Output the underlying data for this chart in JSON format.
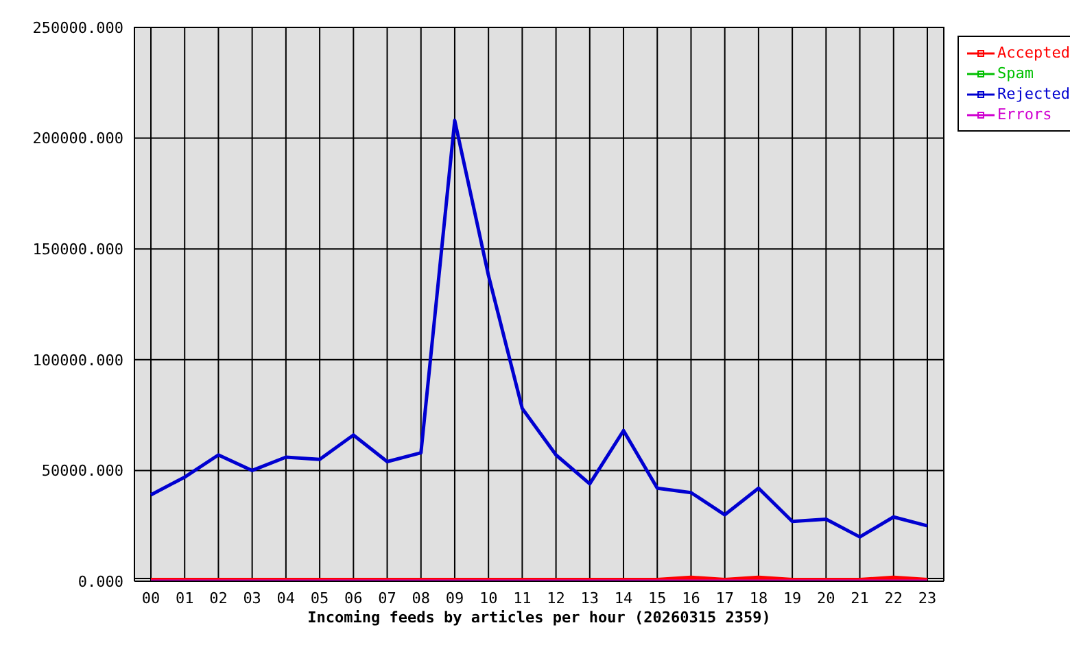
{
  "chart_data": {
    "type": "line",
    "xlabel": "Incoming feeds by articles per hour (20260315 2359)",
    "categories": [
      "00",
      "01",
      "02",
      "03",
      "04",
      "05",
      "06",
      "07",
      "08",
      "09",
      "10",
      "11",
      "12",
      "13",
      "14",
      "15",
      "16",
      "17",
      "18",
      "19",
      "20",
      "21",
      "22",
      "23"
    ],
    "series": [
      {
        "name": "Accepted",
        "color": "#ff0000",
        "values": [
          0,
          0,
          0,
          0,
          0,
          0,
          0,
          0,
          0,
          0,
          0,
          0,
          0,
          0,
          0,
          0,
          1000,
          0,
          1000,
          0,
          0,
          0,
          1000,
          0
        ]
      },
      {
        "name": "Spam",
        "color": "#00c000",
        "values": [
          null,
          null,
          null,
          null,
          null,
          null,
          null,
          null,
          null,
          null,
          null,
          null,
          null,
          null,
          null,
          null,
          null,
          null,
          null,
          null,
          null,
          null,
          null,
          null
        ]
      },
      {
        "name": "Rejected",
        "color": "#0000d0",
        "values": [
          39000,
          47000,
          57000,
          50000,
          56000,
          55000,
          66000,
          54000,
          58000,
          208000,
          138000,
          78000,
          57000,
          44000,
          68000,
          42000,
          40000,
          30000,
          42000,
          27000,
          28000,
          20000,
          29000,
          25000
        ]
      },
      {
        "name": "Errors",
        "color": "#d000d0",
        "values": [
          0,
          0,
          0,
          0,
          0,
          0,
          0,
          0,
          0,
          0,
          0,
          0,
          0,
          0,
          0,
          0,
          0,
          0,
          0,
          0,
          0,
          0,
          0,
          0
        ]
      }
    ],
    "ylim": [
      0,
      250000
    ],
    "yticks": [
      {
        "value": 0,
        "label": "0.000"
      },
      {
        "value": 50000,
        "label": "50000.000"
      },
      {
        "value": 100000,
        "label": "100000.000"
      },
      {
        "value": 150000,
        "label": "150000.000"
      },
      {
        "value": 200000,
        "label": "200000.000"
      },
      {
        "value": 250000,
        "label": "250000.000"
      }
    ],
    "grid": true,
    "legend": "top right",
    "marker": "none",
    "line_style": "solid"
  }
}
